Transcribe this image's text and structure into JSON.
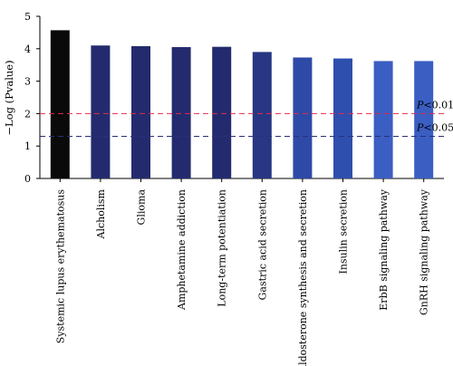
{
  "chart_data": {
    "type": "bar",
    "title": "",
    "xlabel": "",
    "ylabel": "−Log (Pvalue)",
    "ylim": [
      0,
      5
    ],
    "yticks": [
      0,
      1,
      2,
      3,
      4,
      5
    ],
    "grid": false,
    "categories": [
      "Systemic lupus erythematosus",
      "Alcholism",
      "Glioma",
      "Amphetamine addiction",
      "Long-term potentiation",
      "Gastric acid secretion",
      "Aldosterone synthesis and secretion",
      "Insulin secretion",
      "ErbB signaling pathway",
      "GnRH signaling pathway"
    ],
    "values": [
      4.57,
      4.1,
      4.08,
      4.05,
      4.06,
      3.9,
      3.73,
      3.7,
      3.62,
      3.62
    ],
    "bar_colors": [
      "#0a0a0a",
      "#232b6e",
      "#232b6e",
      "#232b6e",
      "#232b6e",
      "#283683",
      "#2e4aa6",
      "#2f4fae",
      "#3a5ec2",
      "#3a5ec2"
    ],
    "reference_lines": [
      {
        "value": 2.0,
        "label_italic": "P",
        "label_rest": "<0.01",
        "color": "#e8294a"
      },
      {
        "value": 1.3,
        "label_italic": "P",
        "label_rest": "<0.05",
        "color": "#2b2f7a"
      }
    ]
  }
}
